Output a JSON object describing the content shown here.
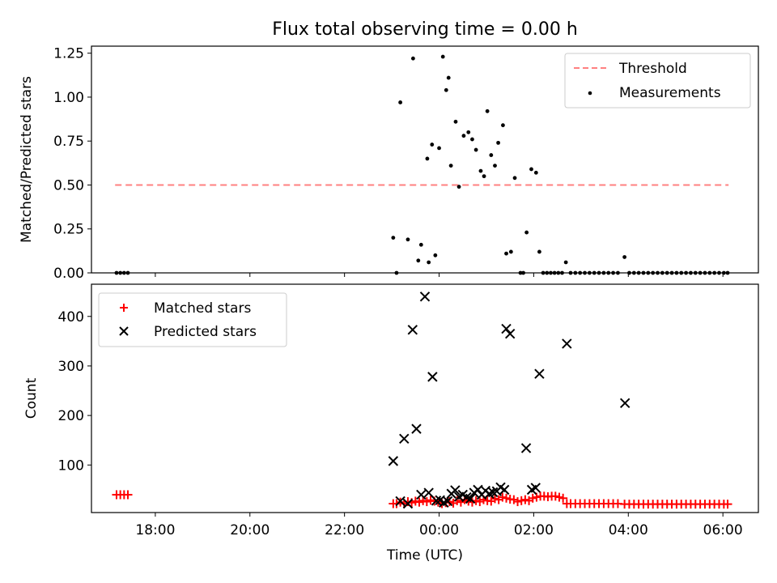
{
  "chart_data": [
    {
      "type": "scatter",
      "panel": "top",
      "title": "Flux total observing time = 0.00 h",
      "xlabel": "",
      "ylabel": "Matched/Predicted stars",
      "xlim": [
        -7.35,
        6.75
      ],
      "ylim": [
        0,
        1.29
      ],
      "yticks": [
        0.0,
        0.25,
        0.5,
        0.75,
        1.0,
        1.25
      ],
      "ytick_labels": [
        "0.00",
        "0.25",
        "0.50",
        "0.75",
        "1.00",
        "1.25"
      ],
      "legend_position": "upper-right",
      "threshold": {
        "name": "Threshold",
        "value": 0.5,
        "x": [
          -6.85,
          6.12
        ],
        "color": "#ff8080"
      },
      "series": [
        {
          "name": "Measurements",
          "color": "#000000",
          "x": [
            -6.82,
            -6.74,
            -6.66,
            -6.58,
            -0.97,
            -0.9,
            -0.82,
            -0.66,
            -0.55,
            -0.44,
            -0.38,
            -0.25,
            -0.22,
            -0.15,
            -0.08,
            0.0,
            0.08,
            0.15,
            0.2,
            0.25,
            0.35,
            0.42,
            0.52,
            0.62,
            0.7,
            0.78,
            0.88,
            0.95,
            1.02,
            1.1,
            1.18,
            1.25,
            1.35,
            1.42,
            1.52,
            1.6,
            1.72,
            1.78,
            1.85,
            1.95,
            2.05,
            2.12,
            2.2,
            2.28,
            2.36,
            2.44,
            2.52,
            2.6,
            2.68,
            2.78,
            2.88,
            2.98,
            3.08,
            3.18,
            3.28,
            3.38,
            3.48,
            3.58,
            3.68,
            3.78,
            3.92,
            4.02,
            4.12,
            4.22,
            4.32,
            4.42,
            4.52,
            4.62,
            4.72,
            4.82,
            4.92,
            5.02,
            5.12,
            5.22,
            5.32,
            5.42,
            5.52,
            5.62,
            5.72,
            5.82,
            5.92,
            6.02,
            6.1
          ],
          "y": [
            0.0,
            0.0,
            0.0,
            0.0,
            0.2,
            0.0,
            0.97,
            0.19,
            1.22,
            0.07,
            0.16,
            0.65,
            0.06,
            0.73,
            0.1,
            0.71,
            1.23,
            1.04,
            1.11,
            0.61,
            0.86,
            0.49,
            0.78,
            0.8,
            0.76,
            0.7,
            0.58,
            0.55,
            0.92,
            0.67,
            0.61,
            0.74,
            0.84,
            0.11,
            0.12,
            0.54,
            0.0,
            0.0,
            0.23,
            0.59,
            0.57,
            0.12,
            0.0,
            0.0,
            0.0,
            0.0,
            0.0,
            0.0,
            0.06,
            0.0,
            0.0,
            0.0,
            0.0,
            0.0,
            0.0,
            0.0,
            0.0,
            0.0,
            0.0,
            0.0,
            0.09,
            0.0,
            0.0,
            0.0,
            0.0,
            0.0,
            0.0,
            0.0,
            0.0,
            0.0,
            0.0,
            0.0,
            0.0,
            0.0,
            0.0,
            0.0,
            0.0,
            0.0,
            0.0,
            0.0,
            0.0,
            0.0,
            0.0
          ]
        }
      ]
    },
    {
      "type": "scatter",
      "panel": "bottom",
      "title": "",
      "xlabel": "Time (UTC)",
      "ylabel": "Count",
      "xlim": [
        -7.35,
        6.75
      ],
      "ylim": [
        4,
        465
      ],
      "yticks": [
        100,
        200,
        300,
        400
      ],
      "ytick_labels": [
        "100",
        "200",
        "300",
        "400"
      ],
      "xticks": [
        -6,
        -4,
        -2,
        0,
        2,
        4,
        6
      ],
      "xtick_labels": [
        "18:00",
        "20:00",
        "22:00",
        "00:00",
        "02:00",
        "04:00",
        "06:00"
      ],
      "legend_position": "upper-left",
      "series": [
        {
          "name": "Matched stars",
          "marker": "plus",
          "color": "#ff0000",
          "x": [
            -6.82,
            -6.74,
            -6.66,
            -6.58,
            -0.97,
            -0.9,
            -0.82,
            -0.74,
            -0.66,
            -0.58,
            -0.5,
            -0.42,
            -0.34,
            -0.26,
            -0.18,
            -0.1,
            -0.02,
            0.06,
            0.14,
            0.22,
            0.3,
            0.38,
            0.46,
            0.54,
            0.62,
            0.7,
            0.78,
            0.86,
            0.94,
            1.02,
            1.1,
            1.18,
            1.26,
            1.34,
            1.42,
            1.5,
            1.58,
            1.66,
            1.74,
            1.82,
            1.9,
            1.98,
            2.06,
            2.14,
            2.22,
            2.3,
            2.38,
            2.46,
            2.54,
            2.62,
            2.7,
            2.78,
            2.88,
            2.98,
            3.08,
            3.18,
            3.28,
            3.38,
            3.48,
            3.58,
            3.68,
            3.78,
            3.92,
            4.02,
            4.12,
            4.22,
            4.32,
            4.42,
            4.52,
            4.62,
            4.72,
            4.82,
            4.92,
            5.02,
            5.12,
            5.22,
            5.32,
            5.42,
            5.52,
            5.62,
            5.72,
            5.82,
            5.92,
            6.02,
            6.1
          ],
          "y": [
            40,
            40,
            40,
            40,
            22,
            22,
            25,
            22,
            26,
            24,
            27,
            25,
            28,
            26,
            29,
            27,
            25,
            22,
            24,
            26,
            23,
            28,
            25,
            30,
            27,
            25,
            28,
            26,
            30,
            28,
            27,
            32,
            30,
            35,
            33,
            31,
            30,
            26,
            28,
            30,
            28,
            33,
            35,
            37,
            37,
            36,
            37,
            37,
            35,
            33,
            22,
            22,
            22,
            22,
            22,
            22,
            22,
            22,
            22,
            22,
            22,
            22,
            21,
            21,
            21,
            21,
            21,
            21,
            21,
            21,
            21,
            21,
            21,
            21,
            21,
            21,
            21,
            21,
            21,
            21,
            21,
            21,
            21,
            21,
            21
          ]
        },
        {
          "name": "Predicted stars",
          "marker": "x",
          "color": "#000000",
          "x": [
            -0.97,
            -0.82,
            -0.74,
            -0.66,
            -0.56,
            -0.48,
            -0.38,
            -0.3,
            -0.22,
            -0.14,
            -0.06,
            0.02,
            0.1,
            0.18,
            0.26,
            0.34,
            0.42,
            0.5,
            0.58,
            0.66,
            0.74,
            0.82,
            0.9,
            0.98,
            1.06,
            1.14,
            1.22,
            1.3,
            1.38,
            1.42,
            1.5,
            1.84,
            1.96,
            2.04,
            2.12,
            2.7,
            3.93
          ],
          "y": [
            108,
            27,
            153,
            22,
            373,
            173,
            40,
            440,
            44,
            278,
            28,
            29,
            24,
            27,
            42,
            49,
            36,
            40,
            35,
            32,
            44,
            50,
            40,
            48,
            42,
            45,
            47,
            55,
            50,
            375,
            365,
            134,
            50,
            54,
            284,
            345,
            225
          ]
        }
      ]
    }
  ]
}
